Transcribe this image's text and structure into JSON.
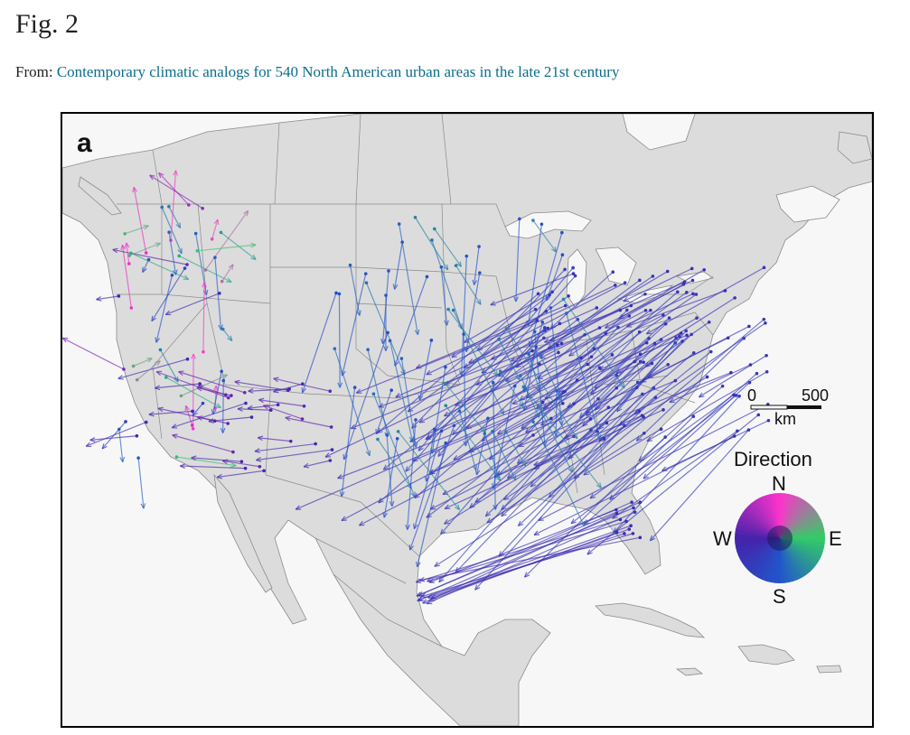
{
  "header": {
    "figure_label": "Fig. 2",
    "from_prefix": "From:",
    "article_title": "Contemporary climatic analogs for 540 North American urban areas in the late 21st century"
  },
  "map": {
    "panel_letter": "a",
    "scale_bar": {
      "start_label": "0",
      "end_label": "500",
      "unit": "km"
    },
    "legend": {
      "title": "Direction",
      "north": "N",
      "east": "E",
      "south": "S",
      "west": "W",
      "colors": {
        "north": "#ff33cc",
        "east": "#33cc66",
        "south": "#2255cc",
        "west": "#4422aa"
      }
    },
    "colors": {
      "land": "#dcdcdc",
      "water": "#f7f7f7",
      "borders": "#777777"
    }
  }
}
